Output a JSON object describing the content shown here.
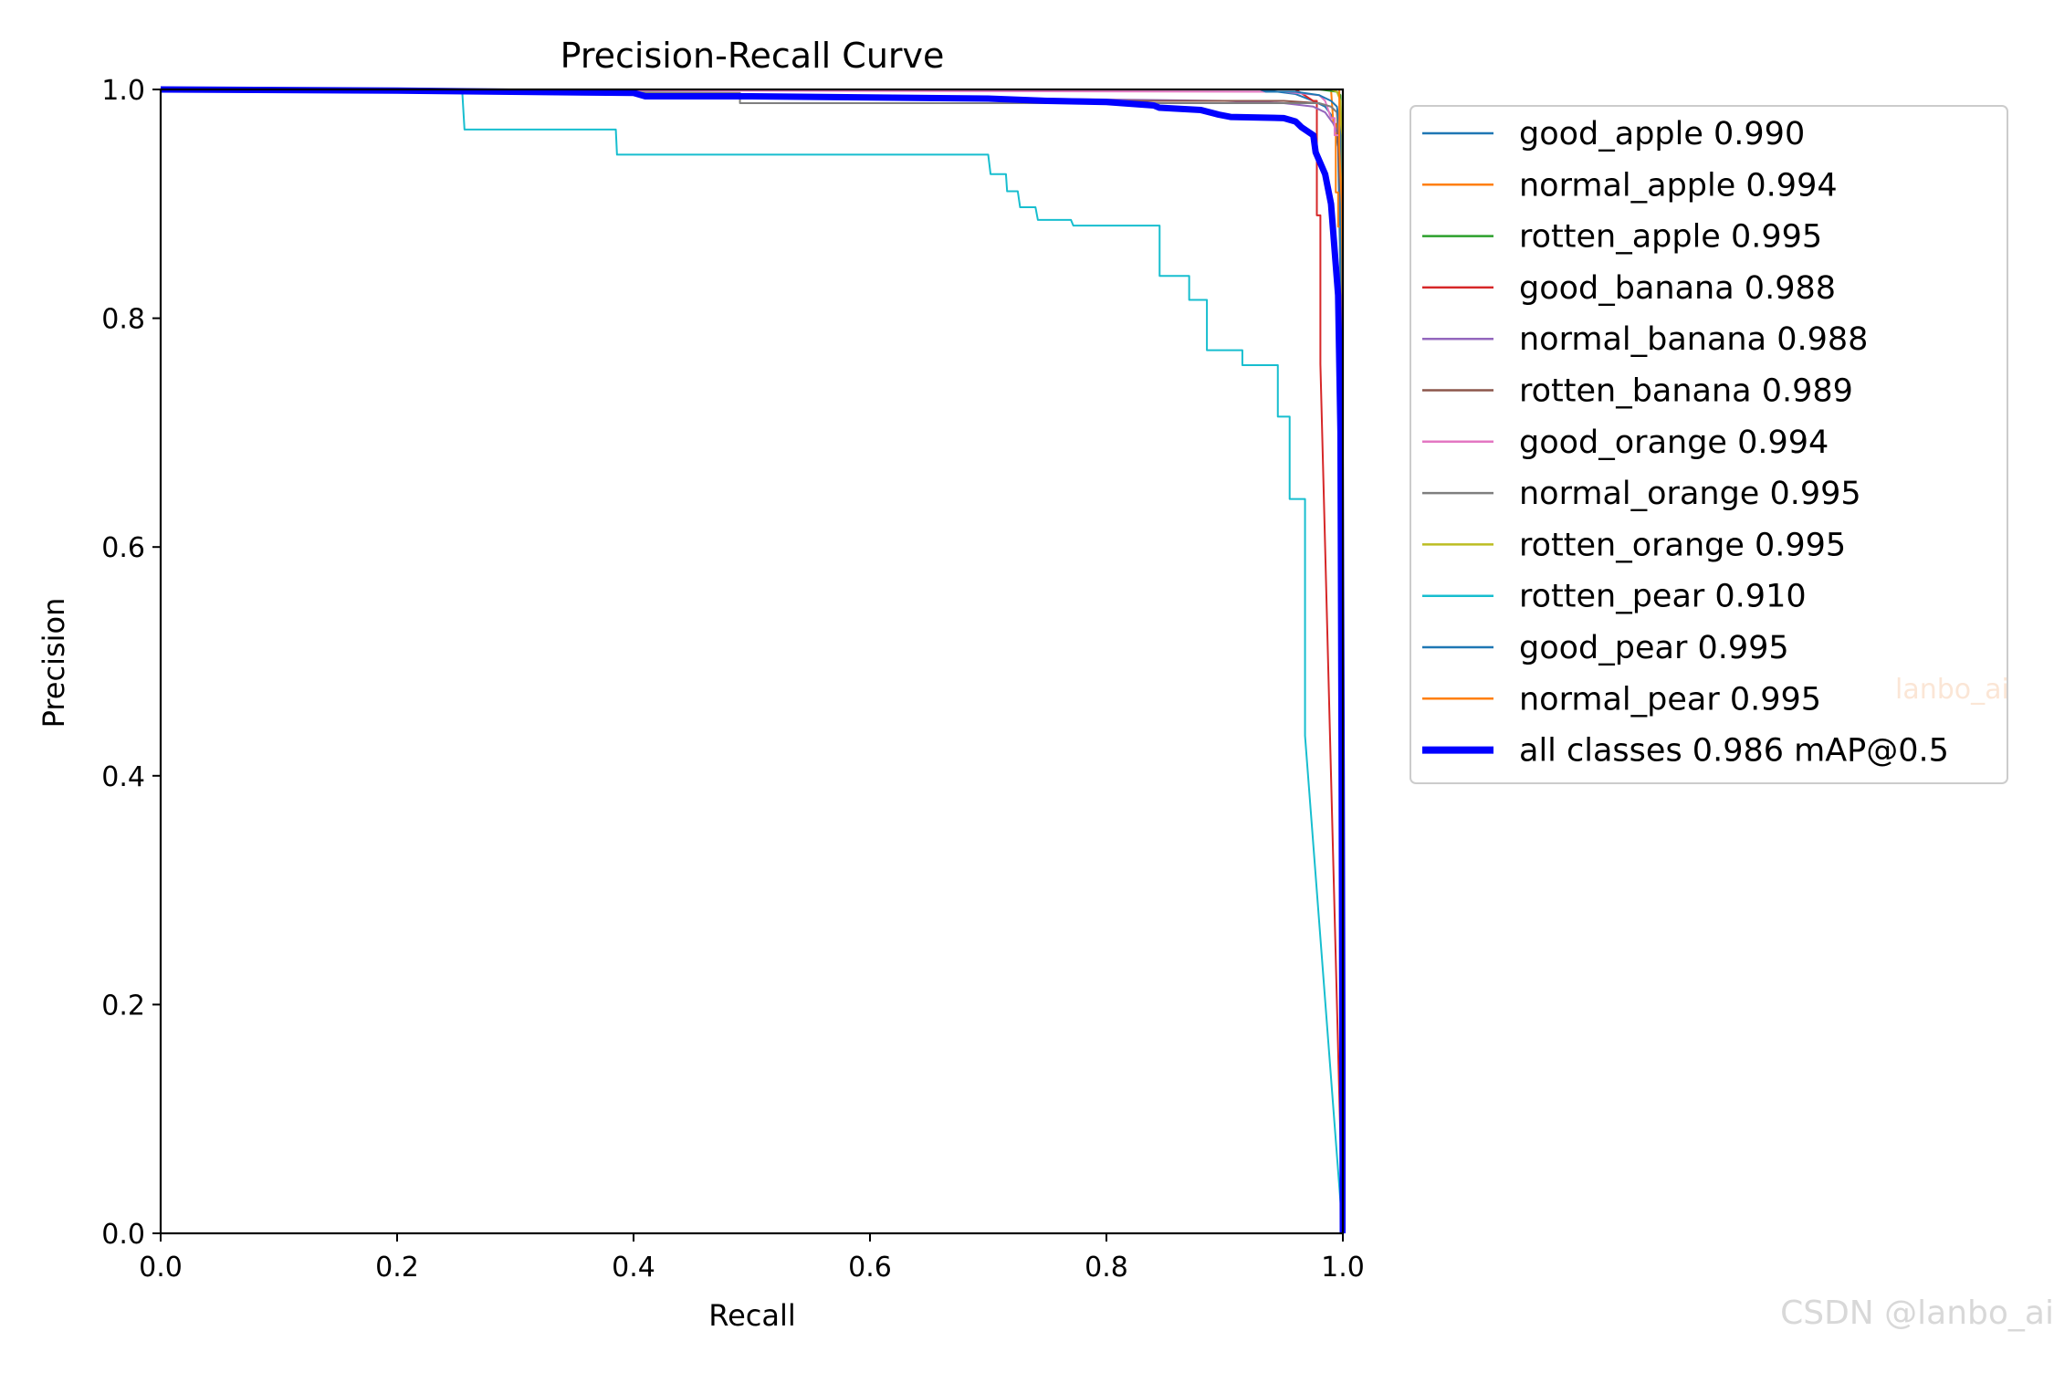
{
  "chart_data": {
    "type": "line",
    "title": "Precision-Recall Curve",
    "xlabel": "Recall",
    "ylabel": "Precision",
    "xlim": [
      0,
      1
    ],
    "ylim": [
      0,
      1
    ],
    "x_ticks": [
      "0.0",
      "0.2",
      "0.4",
      "0.6",
      "0.8",
      "1.0"
    ],
    "y_ticks": [
      "0.0",
      "0.2",
      "0.4",
      "0.6",
      "0.8",
      "1.0"
    ],
    "grid": false,
    "legend_position": "outside-right-top",
    "series": [
      {
        "name": "good_apple 0.990",
        "color": "#1f77b4",
        "linewidth": 2,
        "x": [
          0,
          0.5,
          0.9,
          0.93,
          0.945,
          0.96,
          0.975,
          0.985,
          0.992,
          0.996,
          0.9985,
          1.0
        ],
        "y": [
          1,
          1,
          1,
          1,
          0.998,
          0.996,
          0.99,
          0.985,
          0.975,
          0.95,
          0.8,
          0
        ]
      },
      {
        "name": "normal_apple 0.994",
        "color": "#ff7f0e",
        "linewidth": 2,
        "x": [
          0,
          0.95,
          0.99,
          0.992,
          0.994,
          0.994,
          0.996,
          0.996,
          0.998,
          0.999,
          1.0
        ],
        "y": [
          1,
          1,
          1,
          0.97,
          0.97,
          0.91,
          0.91,
          0.88,
          0.88,
          0.7,
          0
        ]
      },
      {
        "name": "rotten_apple 0.995",
        "color": "#2ca02c",
        "linewidth": 2,
        "x": [
          0,
          0.98,
          0.995,
          0.998,
          0.999,
          1.0
        ],
        "y": [
          1,
          1,
          0.998,
          0.995,
          0.95,
          0
        ]
      },
      {
        "name": "good_banana 0.988",
        "color": "#d62728",
        "linewidth": 2,
        "x": [
          0,
          0.96,
          0.975,
          0.978,
          0.978,
          0.981,
          0.981,
          0.985,
          0.99,
          0.995,
          1.0
        ],
        "y": [
          1,
          1,
          0.99,
          0.99,
          0.89,
          0.89,
          0.76,
          0.6,
          0.4,
          0.2,
          0
        ]
      },
      {
        "name": "normal_banana 0.988",
        "color": "#9467bd",
        "linewidth": 2,
        "x": [
          0,
          0.5,
          0.9,
          0.95,
          0.975,
          0.985,
          0.992,
          0.996,
          0.998,
          1.0
        ],
        "y": [
          1,
          0.995,
          0.99,
          0.988,
          0.985,
          0.98,
          0.97,
          0.96,
          0.9,
          0
        ]
      },
      {
        "name": "rotten_banana 0.989",
        "color": "#8c564b",
        "linewidth": 2,
        "x": [
          0,
          0.5,
          0.8,
          0.95,
          0.98,
          0.99,
          0.995,
          0.998,
          1.0
        ],
        "y": [
          1,
          0.995,
          0.99,
          0.99,
          0.988,
          0.985,
          0.98,
          0.9,
          0
        ]
      },
      {
        "name": "good_orange 0.994",
        "color": "#e377c2",
        "linewidth": 2,
        "x": [
          0,
          0.95,
          0.98,
          0.985,
          0.99,
          0.993,
          0.993,
          0.997,
          0.999,
          1.0
        ],
        "y": [
          1,
          0.998,
          0.995,
          0.99,
          0.975,
          0.975,
          0.96,
          0.96,
          0.9,
          0
        ]
      },
      {
        "name": "normal_orange 0.995",
        "color": "#7f7f7f",
        "linewidth": 2,
        "x": [
          0,
          0.49,
          0.49,
          0.75,
          0.95,
          0.98,
          0.99,
          0.995,
          0.998,
          1.0
        ],
        "y": [
          1,
          0.997,
          0.988,
          0.988,
          0.988,
          0.988,
          0.985,
          0.98,
          0.95,
          0
        ]
      },
      {
        "name": "rotten_orange 0.995",
        "color": "#bcbd22",
        "linewidth": 2,
        "x": [
          0,
          0.98,
          0.99,
          0.995,
          0.998,
          0.999,
          1.0
        ],
        "y": [
          1,
          1,
          1,
          0.998,
          0.99,
          0.95,
          0
        ]
      },
      {
        "name": "rotten_pear 0.910",
        "color": "#17becf",
        "linewidth": 2,
        "x": [
          0,
          0.255,
          0.257,
          0.385,
          0.386,
          0.7,
          0.702,
          0.715,
          0.716,
          0.725,
          0.727,
          0.74,
          0.742,
          0.77,
          0.772,
          0.845,
          0.845,
          0.87,
          0.87,
          0.885,
          0.885,
          0.915,
          0.915,
          0.945,
          0.945,
          0.955,
          0.955,
          0.968,
          0.968,
          1.0
        ],
        "y": [
          1,
          1,
          0.965,
          0.965,
          0.943,
          0.943,
          0.926,
          0.926,
          0.911,
          0.911,
          0.897,
          0.897,
          0.886,
          0.886,
          0.881,
          0.881,
          0.837,
          0.837,
          0.816,
          0.816,
          0.772,
          0.772,
          0.759,
          0.759,
          0.714,
          0.714,
          0.642,
          0.642,
          0.435,
          0
        ]
      },
      {
        "name": "good_pear 0.995",
        "color": "#1f77b4",
        "linewidth": 2,
        "x": [
          0,
          0.93,
          0.935,
          0.96,
          0.98,
          0.99,
          0.995,
          0.998,
          1.0
        ],
        "y": [
          1,
          1,
          0.998,
          0.998,
          0.995,
          0.99,
          0.985,
          0.96,
          0
        ]
      },
      {
        "name": "normal_pear 0.995",
        "color": "#ff7f0e",
        "linewidth": 2,
        "x": [
          0,
          0.995,
          0.997,
          0.997,
          0.999,
          0.9995,
          1.0
        ],
        "y": [
          1,
          1,
          1,
          0.95,
          0.9,
          0.85,
          0
        ]
      },
      {
        "name": "all classes 0.986 mAP@0.5",
        "color": "#0000ff",
        "linewidth": 7,
        "x": [
          0,
          0.2,
          0.4,
          0.41,
          0.5,
          0.6,
          0.7,
          0.75,
          0.8,
          0.84,
          0.845,
          0.88,
          0.895,
          0.905,
          0.95,
          0.96,
          0.965,
          0.975,
          0.977,
          0.985,
          0.99,
          0.993,
          0.996,
          0.998,
          0.999,
          1.0
        ],
        "y": [
          1,
          0.999,
          0.997,
          0.994,
          0.994,
          0.993,
          0.992,
          0.99,
          0.989,
          0.986,
          0.984,
          0.982,
          0.978,
          0.976,
          0.975,
          0.972,
          0.967,
          0.96,
          0.945,
          0.926,
          0.9,
          0.86,
          0.82,
          0.7,
          0.4,
          0
        ]
      }
    ]
  },
  "watermarks": {
    "csdn": "CSDN @lanbo_ai",
    "inline": "lanbo_ai"
  }
}
